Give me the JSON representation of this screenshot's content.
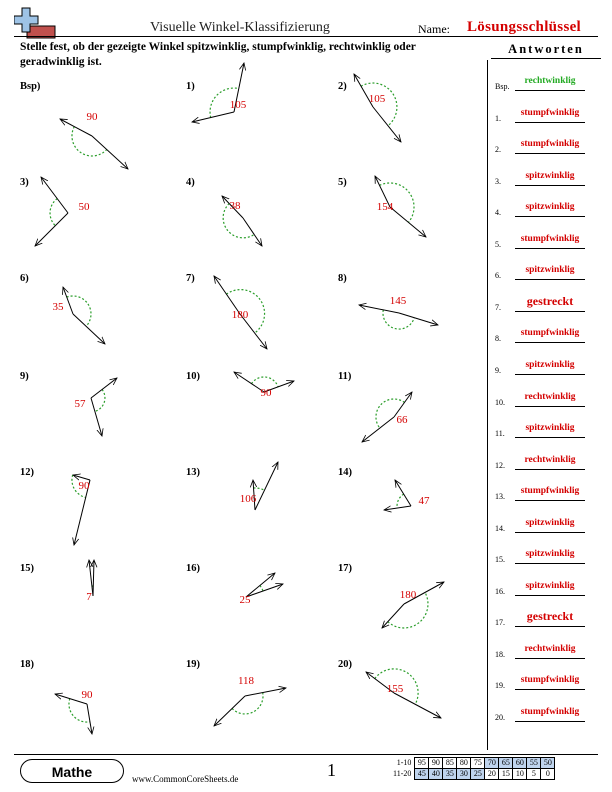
{
  "header": {
    "title": "Visuelle Winkel-Klassifizierung",
    "name_label": "Name:",
    "answer_key_title": "Lösungsschlüssel"
  },
  "instructions": "Stelle fest, ob der gezeigte Winkel spitzwinklig, stumpfwinklig, rechtwinklig oder geradwinklig ist.",
  "answers_heading": "Antworten",
  "problems": [
    {
      "label": "Bsp)",
      "angle": "90"
    },
    {
      "label": "1)",
      "angle": "105"
    },
    {
      "label": "2)",
      "angle": "105"
    },
    {
      "label": "3)",
      "angle": "50"
    },
    {
      "label": "4)",
      "angle": "38"
    },
    {
      "label": "5)",
      "angle": "154"
    },
    {
      "label": "6)",
      "angle": "35"
    },
    {
      "label": "7)",
      "angle": "180"
    },
    {
      "label": "8)",
      "angle": "145"
    },
    {
      "label": "9)",
      "angle": "57"
    },
    {
      "label": "10)",
      "angle": "90"
    },
    {
      "label": "11)",
      "angle": "66"
    },
    {
      "label": "12)",
      "angle": "90"
    },
    {
      "label": "13)",
      "angle": "106"
    },
    {
      "label": "14)",
      "angle": "47"
    },
    {
      "label": "15)",
      "angle": "7"
    },
    {
      "label": "16)",
      "angle": "25"
    },
    {
      "label": "17)",
      "angle": "180"
    },
    {
      "label": "18)",
      "angle": "90"
    },
    {
      "label": "19)",
      "angle": "118"
    },
    {
      "label": "20)",
      "angle": "155"
    }
  ],
  "answers": [
    {
      "num": "Bsp.",
      "text": "rechtwinklig"
    },
    {
      "num": "1.",
      "text": "stumpfwinklig"
    },
    {
      "num": "2.",
      "text": "stumpfwinklig"
    },
    {
      "num": "3.",
      "text": "spitzwinklig"
    },
    {
      "num": "4.",
      "text": "spitzwinklig"
    },
    {
      "num": "5.",
      "text": "stumpfwinklig"
    },
    {
      "num": "6.",
      "text": "spitzwinklig"
    },
    {
      "num": "7.",
      "text": "gestreckt"
    },
    {
      "num": "8.",
      "text": "stumpfwinklig"
    },
    {
      "num": "9.",
      "text": "spitzwinklig"
    },
    {
      "num": "10.",
      "text": "rechtwinklig"
    },
    {
      "num": "11.",
      "text": "spitzwinklig"
    },
    {
      "num": "12.",
      "text": "rechtwinklig"
    },
    {
      "num": "13.",
      "text": "stumpfwinklig"
    },
    {
      "num": "14.",
      "text": "spitzwinklig"
    },
    {
      "num": "15.",
      "text": "spitzwinklig"
    },
    {
      "num": "16.",
      "text": "spitzwinklig"
    },
    {
      "num": "17.",
      "text": "gestreckt"
    },
    {
      "num": "18.",
      "text": "rechtwinklig"
    },
    {
      "num": "19.",
      "text": "stumpfwinklig"
    },
    {
      "num": "20.",
      "text": "stumpfwinklig"
    }
  ],
  "footer": {
    "subject": "Mathe",
    "site": "www.CommonCoreSheets.de",
    "page_number": "1",
    "score_rows": [
      {
        "range": "1-10",
        "scores": [
          "95",
          "90",
          "85",
          "80",
          "75",
          "70",
          "65",
          "60",
          "55",
          "50"
        ]
      },
      {
        "range": "11-20",
        "scores": [
          "45",
          "40",
          "35",
          "30",
          "25",
          "20",
          "15",
          "10",
          "5",
          "0"
        ]
      }
    ]
  },
  "colors": {
    "answer_red": "#d40000",
    "example_green": "#22aa22",
    "arc_green": "#2a9d2a",
    "score_shade": "#bfd4ee",
    "logo_blue": "#9ec3e6",
    "logo_red": "#c0504d"
  }
}
